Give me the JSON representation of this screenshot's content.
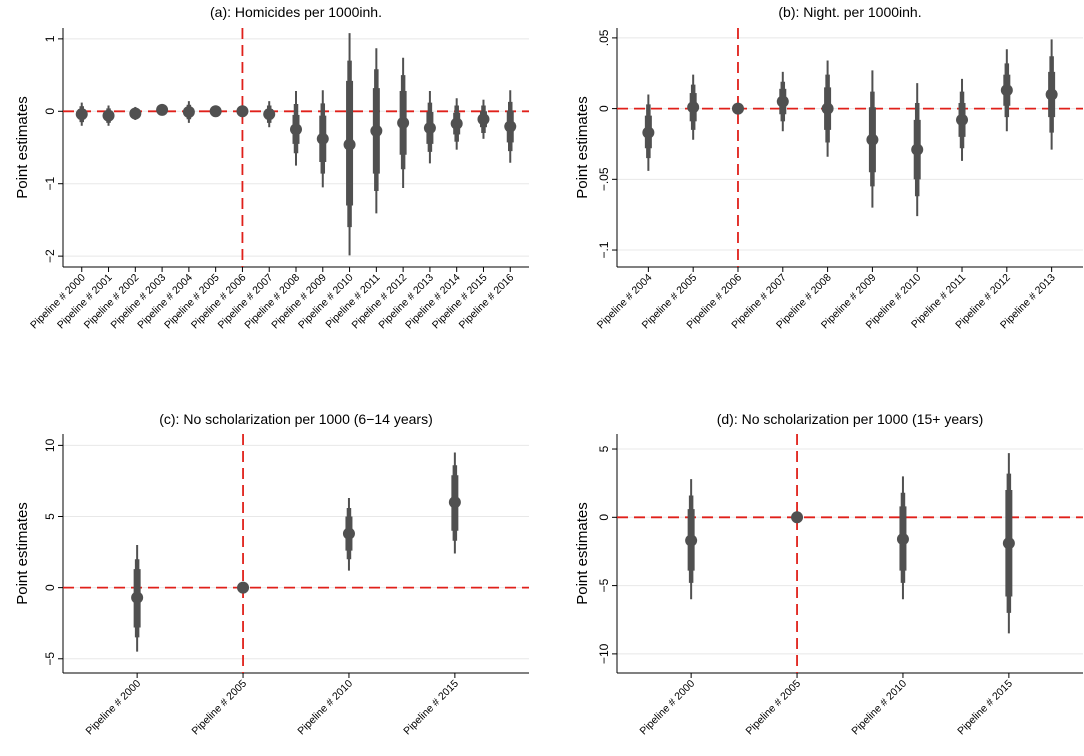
{
  "chart_data": [
    {
      "type": "coefficient-plot",
      "title": "(a): Homicides per 1000inh.",
      "ylabel": "Point estimates",
      "ylim": [
        -2.15,
        1.15
      ],
      "yticks": [
        -2,
        -1,
        0,
        1
      ],
      "ytick_labels": [
        "−2",
        "−1",
        "0",
        "1"
      ],
      "grid": true,
      "reference_line_y": 0,
      "reference_category": "Pipeline # 2006",
      "categories": [
        "Pipeline # 2000",
        "Pipeline # 2001",
        "Pipeline # 2002",
        "Pipeline # 2003",
        "Pipeline # 2004",
        "Pipeline # 2005",
        "Pipeline # 2006",
        "Pipeline # 2007",
        "Pipeline # 2008",
        "Pipeline # 2009",
        "Pipeline # 2010",
        "Pipeline # 2011",
        "Pipeline # 2012",
        "Pipeline # 2013",
        "Pipeline # 2014",
        "Pipeline # 2015",
        "Pipeline # 2016"
      ],
      "estimates": [
        -0.04,
        -0.06,
        -0.03,
        0.02,
        -0.01,
        0.0,
        0.0,
        -0.04,
        -0.25,
        -0.38,
        -0.46,
        -0.27,
        -0.16,
        -0.23,
        -0.17,
        -0.11,
        -0.21
      ],
      "ci_outer": [
        [
          -0.2,
          0.12
        ],
        [
          -0.2,
          0.08
        ],
        [
          -0.12,
          0.06
        ],
        [
          -0.05,
          0.08
        ],
        [
          -0.16,
          0.14
        ],
        [
          -0.06,
          0.06
        ],
        [
          -0.04,
          0.04
        ],
        [
          -0.22,
          0.14
        ],
        [
          -0.75,
          0.28
        ],
        [
          -1.05,
          0.29
        ],
        [
          -1.99,
          1.08
        ],
        [
          -1.41,
          0.87
        ],
        [
          -1.06,
          0.74
        ],
        [
          -0.72,
          0.28
        ],
        [
          -0.53,
          0.18
        ],
        [
          -0.38,
          0.16
        ],
        [
          -0.71,
          0.29
        ]
      ],
      "ci_mid": [
        [
          -0.15,
          0.07
        ],
        [
          -0.16,
          0.04
        ],
        [
          -0.09,
          0.03
        ],
        [
          -0.02,
          0.06
        ],
        [
          -0.11,
          0.09
        ],
        [
          -0.04,
          0.04
        ],
        [
          -0.03,
          0.03
        ],
        [
          -0.16,
          0.08
        ],
        [
          -0.58,
          0.1
        ],
        [
          -0.86,
          0.11
        ],
        [
          -1.6,
          0.7
        ],
        [
          -1.1,
          0.58
        ],
        [
          -0.8,
          0.5
        ],
        [
          -0.56,
          0.12
        ],
        [
          -0.42,
          0.08
        ],
        [
          -0.3,
          0.08
        ],
        [
          -0.55,
          0.13
        ]
      ],
      "ci_inner": [
        [
          -0.11,
          0.03
        ],
        [
          -0.12,
          0.0
        ],
        [
          -0.06,
          0.0
        ],
        [
          0.0,
          0.04
        ],
        [
          -0.07,
          0.05
        ],
        [
          -0.02,
          0.02
        ],
        [
          -0.02,
          0.02
        ],
        [
          -0.11,
          0.03
        ],
        [
          -0.45,
          -0.05
        ],
        [
          -0.7,
          -0.06
        ],
        [
          -1.3,
          0.42
        ],
        [
          -0.86,
          0.32
        ],
        [
          -0.6,
          0.28
        ],
        [
          -0.45,
          -0.01
        ],
        [
          -0.32,
          -0.02
        ],
        [
          -0.22,
          0.0
        ],
        [
          -0.43,
          0.01
        ]
      ]
    },
    {
      "type": "coefficient-plot",
      "title": "(b): Night. per 1000inh.",
      "ylabel": "Point estimates",
      "ylim": [
        -0.112,
        0.057
      ],
      "yticks": [
        -0.1,
        -0.05,
        0,
        0.05
      ],
      "ytick_labels": [
        "−.1",
        "−.05",
        "0",
        ".05"
      ],
      "grid": true,
      "reference_line_y": 0,
      "reference_category": "Pipeline # 2006",
      "categories": [
        "Pipeline # 2004",
        "Pipeline # 2005",
        "Pipeline # 2006",
        "Pipeline # 2007",
        "Pipeline # 2008",
        "Pipeline # 2009",
        "Pipeline # 2010",
        "Pipeline # 2011",
        "Pipeline # 2012",
        "Pipeline # 2013"
      ],
      "estimates": [
        -0.017,
        0.001,
        0.0,
        0.005,
        0.0,
        -0.022,
        -0.029,
        -0.008,
        0.013,
        0.01
      ],
      "ci_outer": [
        [
          -0.044,
          0.01
        ],
        [
          -0.022,
          0.024
        ],
        [
          -0.001,
          0.001
        ],
        [
          -0.016,
          0.026
        ],
        [
          -0.034,
          0.034
        ],
        [
          -0.07,
          0.027
        ],
        [
          -0.076,
          0.018
        ],
        [
          -0.037,
          0.021
        ],
        [
          -0.016,
          0.042
        ],
        [
          -0.029,
          0.049
        ]
      ],
      "ci_mid": [
        [
          -0.035,
          0.003
        ],
        [
          -0.015,
          0.017
        ],
        [
          -0.001,
          0.001
        ],
        [
          -0.009,
          0.019
        ],
        [
          -0.024,
          0.024
        ],
        [
          -0.055,
          0.012
        ],
        [
          -0.062,
          0.004
        ],
        [
          -0.028,
          0.012
        ],
        [
          -0.006,
          0.032
        ],
        [
          -0.017,
          0.037
        ]
      ],
      "ci_inner": [
        [
          -0.028,
          -0.005
        ],
        [
          -0.009,
          0.011
        ],
        [
          -0.001,
          0.001
        ],
        [
          -0.004,
          0.014
        ],
        [
          -0.015,
          0.015
        ],
        [
          -0.045,
          0.001
        ],
        [
          -0.05,
          -0.008
        ],
        [
          -0.02,
          0.004
        ],
        [
          0.002,
          0.024
        ],
        [
          -0.006,
          0.026
        ]
      ]
    },
    {
      "type": "coefficient-plot",
      "title": "(c): No scholarization per 1000 (6−14 years)",
      "ylabel": "Point estimates",
      "ylim": [
        -6.0,
        10.8
      ],
      "yticks": [
        -5,
        0,
        5,
        10
      ],
      "ytick_labels": [
        "−5",
        "0",
        "5",
        "10"
      ],
      "grid": true,
      "reference_line_y": 0,
      "reference_category": "Pipeline # 2005",
      "categories": [
        "Pipeline # 2000",
        "Pipeline # 2005",
        "Pipeline # 2010",
        "Pipeline # 2015"
      ],
      "estimates": [
        -0.7,
        0.0,
        3.8,
        6.0
      ],
      "ci_outer": [
        [
          -4.5,
          3.0
        ],
        [
          -0.2,
          0.2
        ],
        [
          1.2,
          6.3
        ],
        [
          2.4,
          9.5
        ]
      ],
      "ci_mid": [
        [
          -3.5,
          2.0
        ],
        [
          -0.15,
          0.15
        ],
        [
          2.0,
          5.6
        ],
        [
          3.3,
          8.6
        ]
      ],
      "ci_inner": [
        [
          -2.8,
          1.3
        ],
        [
          -0.1,
          0.1
        ],
        [
          2.6,
          5.0
        ],
        [
          4.0,
          7.9
        ]
      ]
    },
    {
      "type": "coefficient-plot",
      "title": "(d):  No scholarization per 1000 (15+ years)",
      "ylabel": "Point estimates",
      "ylim": [
        -11.4,
        6.1
      ],
      "yticks": [
        -10,
        -5,
        0,
        5
      ],
      "ytick_labels": [
        "−10",
        "−5",
        "0",
        "5"
      ],
      "grid": true,
      "reference_line_y": 0,
      "reference_category": "Pipeline # 2005",
      "categories": [
        "Pipeline # 2000",
        "Pipeline # 2005",
        "Pipeline # 2010",
        "Pipeline # 2015"
      ],
      "estimates": [
        -1.7,
        0.0,
        -1.6,
        -1.9
      ],
      "ci_outer": [
        [
          -6.0,
          2.8
        ],
        [
          -0.2,
          0.2
        ],
        [
          -6.0,
          3.0
        ],
        [
          -8.5,
          4.7
        ]
      ],
      "ci_mid": [
        [
          -4.8,
          1.6
        ],
        [
          -0.15,
          0.15
        ],
        [
          -4.8,
          1.8
        ],
        [
          -7.0,
          3.2
        ]
      ],
      "ci_inner": [
        [
          -3.9,
          0.6
        ],
        [
          -0.1,
          0.1
        ],
        [
          -3.9,
          0.8
        ],
        [
          -5.8,
          2.0
        ]
      ]
    }
  ],
  "colors": {
    "estimate": "#505050",
    "reference_line": "#e0201a",
    "grid": "#e8e8e8",
    "axis": "#000000"
  }
}
